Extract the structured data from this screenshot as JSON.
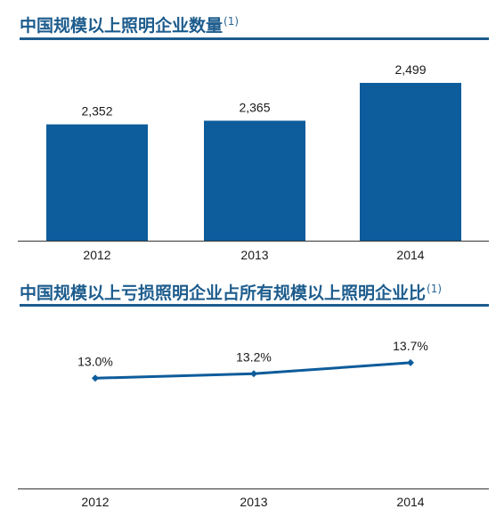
{
  "chart_data": [
    {
      "type": "bar",
      "title": "中国规模以上照明企业数量",
      "title_note": "(1)",
      "categories": [
        "2012",
        "2013",
        "2014"
      ],
      "values": [
        2352,
        2365,
        2499
      ],
      "value_labels": [
        "2,352",
        "2,365",
        "2,499"
      ],
      "ylim": [
        1940,
        2540
      ],
      "xlabel": "",
      "ylabel": "",
      "grid": false,
      "legend": "none",
      "color": "#0d5c9b"
    },
    {
      "type": "line",
      "title": "中国规模以上亏损照明企业占所有规模以上照明企业比",
      "title_note": "(1)",
      "categories": [
        "2012",
        "2013",
        "2014"
      ],
      "values": [
        13.0,
        13.2,
        13.7
      ],
      "value_labels": [
        "13.0%",
        "13.2%",
        "13.7%"
      ],
      "ylim": [
        8,
        16
      ],
      "xlabel": "",
      "ylabel": "",
      "grid": false,
      "legend": "none",
      "color": "#0d5c9b"
    }
  ]
}
